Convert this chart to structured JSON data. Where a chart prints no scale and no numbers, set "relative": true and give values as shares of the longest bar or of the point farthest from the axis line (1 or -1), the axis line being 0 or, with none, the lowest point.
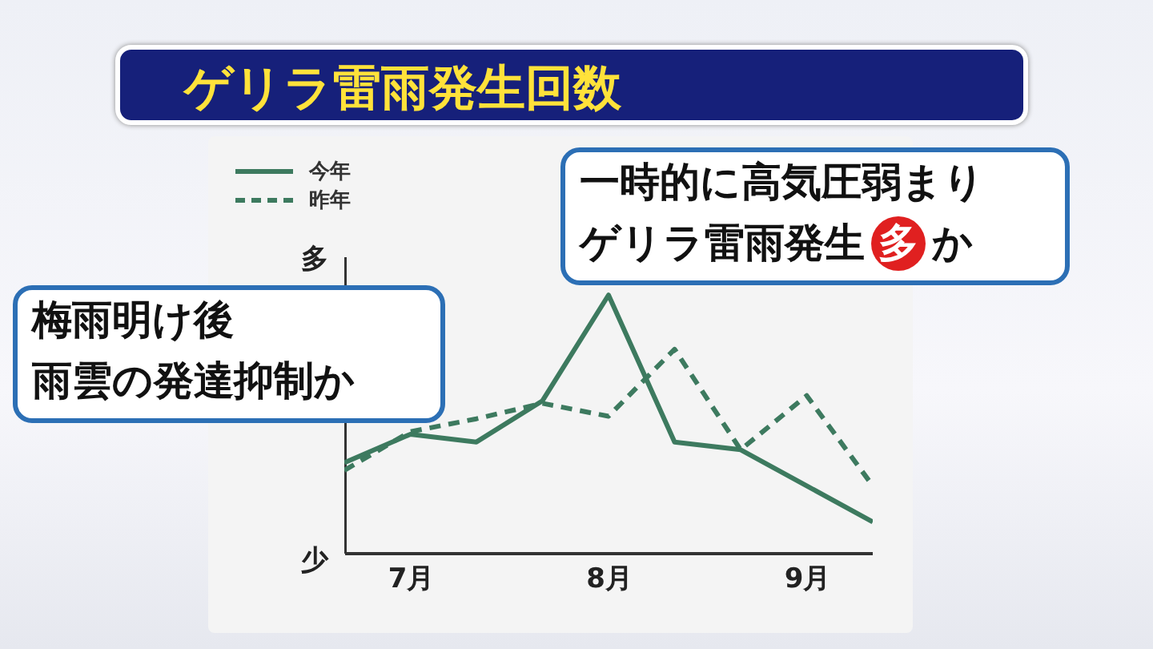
{
  "chart_data": {
    "type": "line",
    "title": "ゲリラ雷雨発生回数",
    "relative": true,
    "legend": "top left",
    "marker": "none",
    "categories": [
      null,
      "7月",
      null,
      null,
      "8月",
      null,
      null,
      "9月",
      null
    ],
    "series": [
      {
        "name": "今年",
        "color": "#3d7a5f",
        "line_style": "solid",
        "values": [
          0.35,
          0.46,
          0.43,
          0.59,
          1,
          0.43,
          0.4,
          0.26,
          0.12
        ]
      },
      {
        "name": "昨年",
        "color": "#3d7a5f",
        "line_style": "dashed",
        "values": [
          0.32,
          0.47,
          0.52,
          0.58,
          0.53,
          0.79,
          0.4,
          0.61,
          0.26
        ]
      }
    ],
    "annotations": [
      "多",
      "少",
      "一時的に高気圧弱まり",
      "ゲリラ雷雨発生多か",
      "梅雨明け後",
      "雨雲の発達抑制か"
    ]
  }
}
